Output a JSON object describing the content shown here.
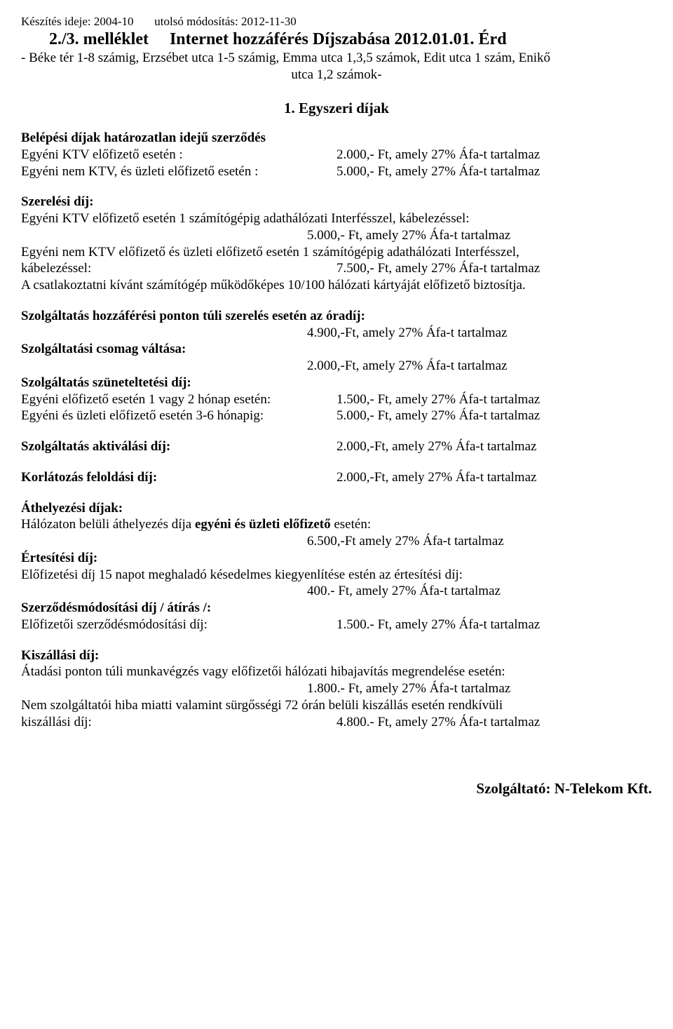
{
  "header": {
    "left": "Készítés ideje: 2004-10",
    "right": "utolsó módosítás: 2012-11-30",
    "title": "2./3. melléklet     Internet hozzáférés Díjszabása 2012.01.01. Érd",
    "subtitle1": "- Béke tér 1-8 számig, Erzsébet utca 1-5 számig, Emma utca 1,3,5 számok, Edit utca 1 szám,  Enikő",
    "subtitle2": "utca 1,2 számok-"
  },
  "section_title": "1. Egyszeri díjak",
  "belepesi": {
    "heading": "Belépési  díjak határozatlan idejű szerződés",
    "row1_l": "Egyéni KTV előfizető esetén :",
    "row1_r": "2.000,- Ft, amely 27% Áfa-t tartalmaz",
    "row2_l": "Egyéni nem KTV, és üzleti előfizető esetén :",
    "row2_r": "5.000,- Ft, amely 27% Áfa-t tartalmaz"
  },
  "szerelesi": {
    "heading": "Szerelési díj:",
    "line1": "Egyéni KTV előfizető esetén 1 számítógépig adathálózati Interfésszel, kábelezéssel:",
    "line1_val": "5.000,- Ft, amely 27% Áfa-t tartalmaz",
    "line2a": "Egyéni nem KTV előfizető és üzleti előfizető esetén 1 számítógépig adathálózati Interfésszel,",
    "line2b_l": "kábelezéssel:",
    "line2b_r": "7.500,- Ft, amely 27% Áfa-t tartalmaz",
    "line3": "A csatlakoztatni kívánt számítógép működőképes 10/100 hálózati kártyáját  előfizető biztosítja."
  },
  "hozzaferesi": {
    "heading": "Szolgáltatás hozzáférési ponton túli szerelés esetén az óradíj:",
    "val": "4.900,-Ft, amely 27% Áfa-t tartalmaz"
  },
  "csomag": {
    "heading": "Szolgáltatási csomag váltása:",
    "val": "2.000,-Ft, amely 27% Áfa-t tartalmaz"
  },
  "szunet": {
    "heading": "Szolgáltatás szüneteltetési díj:",
    "row1_l": "Egyéni előfizető esetén 1 vagy 2 hónap esetén:",
    "row1_r": "1.500,- Ft, amely 27% Áfa-t tartalmaz",
    "row2_l": "Egyéni és üzleti előfizető esetén 3-6 hónapig:",
    "row2_r": "5.000,- Ft, amely 27% Áfa-t tartalmaz"
  },
  "aktivalasi": {
    "l": "Szolgáltatás aktiválási díj:",
    "r": "2.000,-Ft, amely 27% Áfa-t tartalmaz"
  },
  "korlatozas": {
    "l": "Korlátozás feloldási díj:",
    "r": "2.000,-Ft, amely 27% Áfa-t tartalmaz"
  },
  "athelyezesi": {
    "heading": "Áthelyezési díjak:",
    "line_l": "Hálózaton belüli áthelyezés díja ",
    "line_bold": "egyéni és üzleti előfizető",
    "line_r": " esetén:",
    "val": "6.500,-Ft amely 27% Áfa-t tartalmaz"
  },
  "ertesitesi": {
    "heading": "Értesítési díj:",
    "line": "Előfizetési díj 15 napot meghaladó késedelmes kiegyenlítése estén az értesítési díj:",
    "val": "400.- Ft, amely 27% Áfa-t tartalmaz"
  },
  "szerzodesmod": {
    "heading": "Szerződésmódosítási díj / átírás /:",
    "row_l": "Előfizetői szerződésmódosítási díj:",
    "row_r": "1.500.- Ft, amely 27% Áfa-t tartalmaz"
  },
  "kiszallasi": {
    "heading": "Kiszállási díj:",
    "line1": "Átadási ponton túli munkavégzés vagy előfizetői hálózati hibajavítás megrendelése esetén:",
    "val1": "1.800.- Ft, amely 27% Áfa-t tartalmaz",
    "line2": "Nem szolgáltatói hiba miatti valamint sürgősségi 72 órán belüli kiszállás esetén rendkívüli",
    "row3_l": "kiszállási díj:",
    "row3_r": "4.800.- Ft, amely 27% Áfa-t tartalmaz"
  },
  "footer": "Szolgáltató: N-Telekom Kft."
}
